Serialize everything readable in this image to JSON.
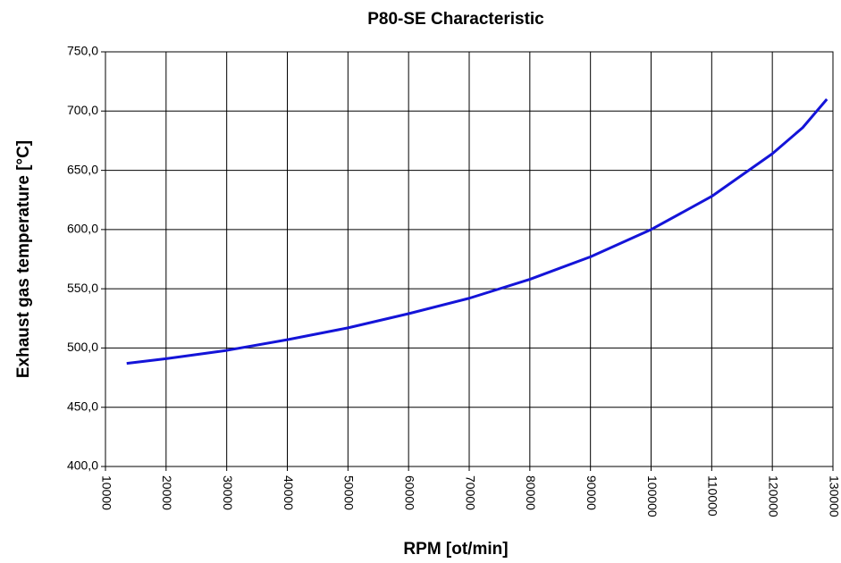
{
  "chart_data": {
    "type": "line",
    "title": "P80-SE Characteristic",
    "xlabel": "RPM [ot/min]",
    "ylabel": "Exhaust gas temperature [°C]",
    "x": [
      13500,
      20000,
      30000,
      40000,
      50000,
      60000,
      70000,
      80000,
      90000,
      100000,
      110000,
      120000,
      125000,
      129000
    ],
    "series": [
      {
        "name": "Exhaust gas temperature",
        "color": "#1414d8",
        "values": [
          487,
          491,
          498,
          507,
          517,
          529,
          542,
          558,
          577,
          600,
          628,
          664,
          686,
          710
        ]
      }
    ],
    "xlim": [
      10000,
      130000
    ],
    "xticks": [
      10000,
      20000,
      30000,
      40000,
      50000,
      60000,
      70000,
      80000,
      90000,
      100000,
      110000,
      120000,
      130000
    ],
    "ylim": [
      400,
      750
    ],
    "yticks": [
      {
        "value": 400,
        "label": "400,0"
      },
      {
        "value": 450,
        "label": "450,0"
      },
      {
        "value": 500,
        "label": "500,0"
      },
      {
        "value": 550,
        "label": "550,0"
      },
      {
        "value": 600,
        "label": "600,0"
      },
      {
        "value": 650,
        "label": "650,0"
      },
      {
        "value": 700,
        "label": "700,0"
      },
      {
        "value": 750,
        "label": "750,0"
      }
    ],
    "grid": true
  }
}
